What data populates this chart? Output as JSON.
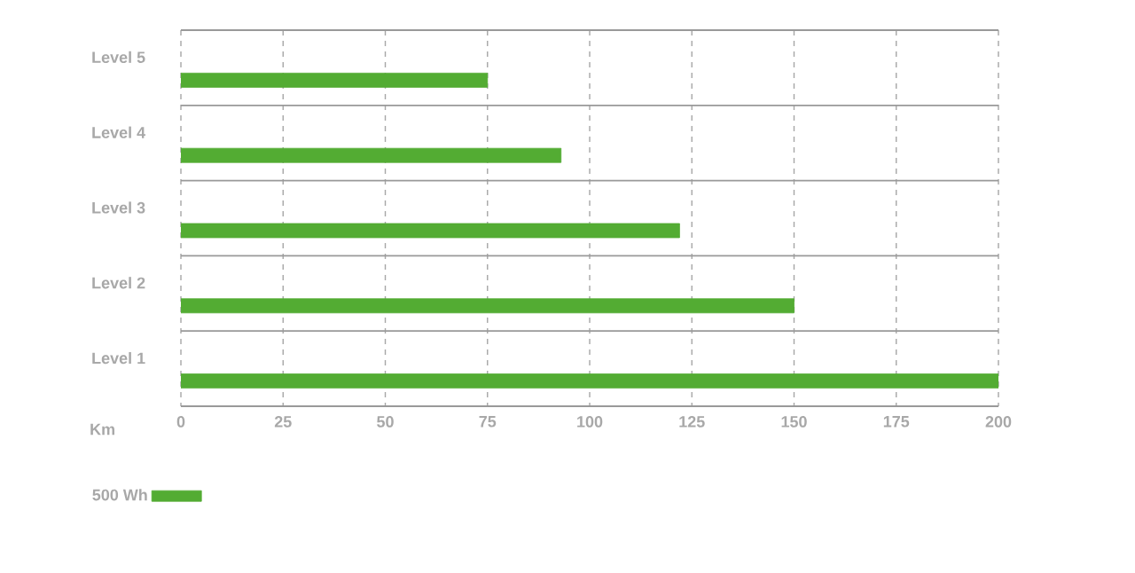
{
  "chart_data": {
    "type": "bar",
    "orientation": "horizontal",
    "annotations": [
      "Km"
    ],
    "categories": [
      "Level 5",
      "Level 4",
      "Level 3",
      "Level 2",
      "Level 1"
    ],
    "series": [
      {
        "name": "500 Wh",
        "color": "#53ac33",
        "values": [
          75,
          93,
          122,
          150,
          200
        ]
      }
    ],
    "xlim": [
      0,
      200
    ],
    "xticks": [
      0,
      25,
      50,
      75,
      100,
      125,
      150,
      175,
      200
    ],
    "grid": true,
    "legend": "bottom left"
  }
}
